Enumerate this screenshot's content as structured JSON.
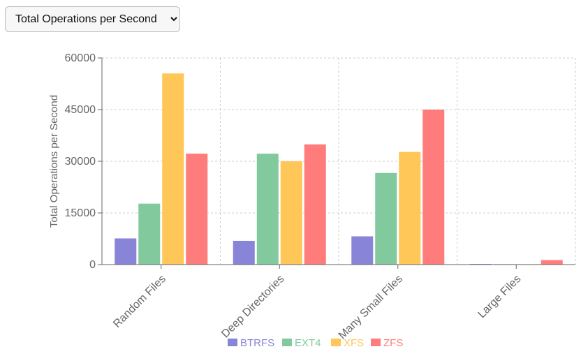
{
  "controls": {
    "metric_options": [
      "Total Operations per Second"
    ],
    "selected_metric": "Total Operations per Second"
  },
  "colors": {
    "BTRFS": "#8884d8",
    "EXT4": "#82ca9d",
    "XFS": "#ffc658",
    "ZFS": "#ff7c7c",
    "grid": "#cccccc",
    "axis": "#666666"
  },
  "chart_data": {
    "type": "bar",
    "title": "",
    "xlabel": "",
    "ylabel": "Total Operations per Second",
    "categories": [
      "Random Files",
      "Deep Directories",
      "Many Small Files",
      "Large Files"
    ],
    "series": [
      {
        "name": "BTRFS",
        "values": [
          7600,
          6900,
          8200,
          200
        ]
      },
      {
        "name": "EXT4",
        "values": [
          17700,
          32200,
          26600,
          150
        ]
      },
      {
        "name": "XFS",
        "values": [
          55500,
          30000,
          32700,
          150
        ]
      },
      {
        "name": "ZFS",
        "values": [
          32200,
          34900,
          45000,
          1300
        ]
      }
    ],
    "ylim": [
      0,
      60000
    ],
    "yticks": [
      "0",
      "15000",
      "30000",
      "45000",
      "60000"
    ],
    "grid": true,
    "legend_position": "bottom"
  }
}
